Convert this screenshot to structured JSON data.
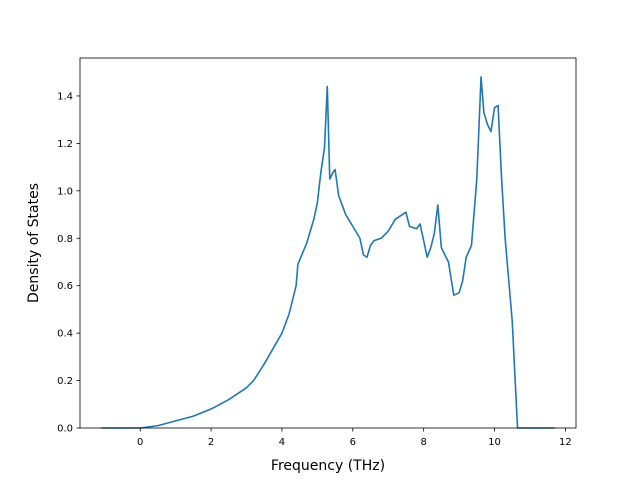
{
  "chart_data": {
    "type": "line",
    "title": "",
    "xlabel": "Frequency (THz)",
    "ylabel": "Density of States",
    "xlim": [
      -1.7,
      12.3
    ],
    "ylim": [
      0.0,
      1.56
    ],
    "xticks": [
      0,
      2,
      4,
      6,
      8,
      10,
      12
    ],
    "yticks": [
      0.0,
      0.2,
      0.4,
      0.6,
      0.8,
      1.0,
      1.2,
      1.4
    ],
    "grid": false,
    "legend": "none",
    "colors": {
      "line": "#1f77b4",
      "axes": "#000000"
    },
    "series": [
      {
        "name": "",
        "x": [
          -1.1,
          0.0,
          0.5,
          1.0,
          1.5,
          2.0,
          2.5,
          3.0,
          3.2,
          3.5,
          4.0,
          4.2,
          4.4,
          4.45,
          4.7,
          4.9,
          5.0,
          5.1,
          5.2,
          5.28,
          5.35,
          5.45,
          5.5,
          5.6,
          5.8,
          6.0,
          6.2,
          6.3,
          6.4,
          6.5,
          6.6,
          6.8,
          7.0,
          7.2,
          7.5,
          7.6,
          7.8,
          7.9,
          8.1,
          8.2,
          8.3,
          8.4,
          8.5,
          8.7,
          8.85,
          9.0,
          9.1,
          9.2,
          9.35,
          9.5,
          9.62,
          9.7,
          9.8,
          9.9,
          10.0,
          10.1,
          10.2,
          10.3,
          10.5,
          10.65,
          10.8,
          11.7
        ],
        "y": [
          0.0,
          0.0,
          0.01,
          0.03,
          0.05,
          0.08,
          0.12,
          0.17,
          0.2,
          0.27,
          0.4,
          0.48,
          0.6,
          0.69,
          0.78,
          0.88,
          0.95,
          1.08,
          1.18,
          1.44,
          1.05,
          1.08,
          1.09,
          0.98,
          0.9,
          0.85,
          0.8,
          0.73,
          0.72,
          0.77,
          0.79,
          0.8,
          0.83,
          0.88,
          0.91,
          0.85,
          0.84,
          0.86,
          0.72,
          0.76,
          0.82,
          0.94,
          0.76,
          0.7,
          0.56,
          0.57,
          0.62,
          0.72,
          0.77,
          1.05,
          1.48,
          1.33,
          1.28,
          1.25,
          1.35,
          1.36,
          1.05,
          0.8,
          0.45,
          0.0,
          0.0,
          0.0
        ]
      }
    ]
  }
}
